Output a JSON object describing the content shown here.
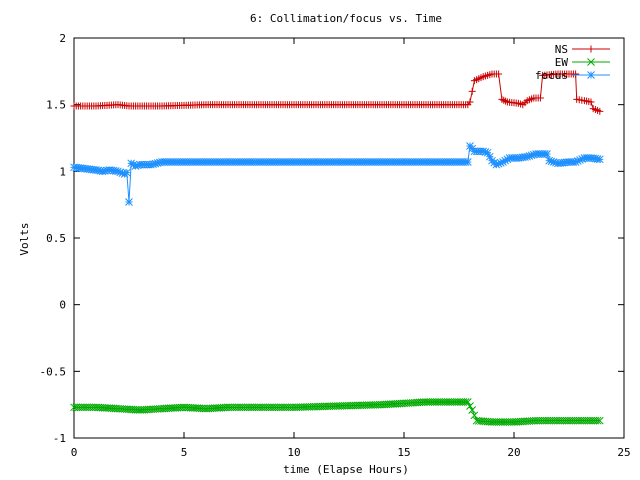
{
  "chart_data": {
    "type": "line",
    "title": "6: Collimation/focus vs. Time",
    "xlabel": "time (Elapse Hours)",
    "ylabel": "Volts",
    "xlim": [
      0,
      25
    ],
    "ylim": [
      -1,
      2
    ],
    "xticks": [
      0,
      5,
      10,
      15,
      20,
      25
    ],
    "xtick_labels": [
      "0",
      "5",
      "10",
      "15",
      "20",
      "25"
    ],
    "yticks": [
      -1,
      -0.5,
      0,
      0.5,
      1,
      1.5,
      2
    ],
    "ytick_labels": [
      "-1",
      "-0.5",
      "0",
      "0.5",
      "1",
      "1.5",
      "2"
    ],
    "grid": false,
    "legend_position": "top-right",
    "series": [
      {
        "name": "NS",
        "color": "#cc0000",
        "marker": "plus",
        "points": [
          [
            0,
            1.49
          ],
          [
            1,
            1.49
          ],
          [
            2,
            1.5
          ],
          [
            2.5,
            1.49
          ],
          [
            3,
            1.49
          ],
          [
            4,
            1.49
          ],
          [
            6,
            1.5
          ],
          [
            8,
            1.5
          ],
          [
            10,
            1.5
          ],
          [
            12,
            1.5
          ],
          [
            14,
            1.5
          ],
          [
            16,
            1.5
          ],
          [
            17.9,
            1.5
          ],
          [
            18.0,
            1.52
          ],
          [
            18.2,
            1.68
          ],
          [
            18.6,
            1.71
          ],
          [
            19,
            1.73
          ],
          [
            19.3,
            1.73
          ],
          [
            19.45,
            1.54
          ],
          [
            19.7,
            1.52
          ],
          [
            20.2,
            1.51
          ],
          [
            20.4,
            1.5
          ],
          [
            20.6,
            1.53
          ],
          [
            20.9,
            1.55
          ],
          [
            21.2,
            1.55
          ],
          [
            21.3,
            1.72
          ],
          [
            22,
            1.73
          ],
          [
            22.8,
            1.73
          ],
          [
            22.85,
            1.54
          ],
          [
            23.2,
            1.53
          ],
          [
            23.5,
            1.52
          ],
          [
            23.6,
            1.47
          ],
          [
            23.9,
            1.45
          ]
        ]
      },
      {
        "name": "EW",
        "color": "#00aa00",
        "marker": "cross",
        "points": [
          [
            0,
            -0.77
          ],
          [
            1,
            -0.77
          ],
          [
            2,
            -0.78
          ],
          [
            3,
            -0.79
          ],
          [
            4,
            -0.78
          ],
          [
            5,
            -0.77
          ],
          [
            6,
            -0.78
          ],
          [
            7,
            -0.77
          ],
          [
            8,
            -0.77
          ],
          [
            10,
            -0.77
          ],
          [
            12,
            -0.76
          ],
          [
            14,
            -0.75
          ],
          [
            15,
            -0.74
          ],
          [
            16,
            -0.73
          ],
          [
            17,
            -0.73
          ],
          [
            17.9,
            -0.73
          ],
          [
            18.1,
            -0.79
          ],
          [
            18.3,
            -0.87
          ],
          [
            19,
            -0.88
          ],
          [
            20,
            -0.88
          ],
          [
            21,
            -0.87
          ],
          [
            22,
            -0.87
          ],
          [
            23,
            -0.87
          ],
          [
            23.9,
            -0.87
          ]
        ]
      },
      {
        "name": "focus",
        "color": "#1e90ff",
        "marker": "star",
        "points": [
          [
            0,
            1.03
          ],
          [
            0.5,
            1.02
          ],
          [
            1,
            1.01
          ],
          [
            1.3,
            1.0
          ],
          [
            1.6,
            1.01
          ],
          [
            2,
            1.0
          ],
          [
            2.3,
            0.98
          ],
          [
            2.4,
            0.99
          ],
          [
            2.5,
            0.77
          ],
          [
            2.6,
            1.06
          ],
          [
            2.8,
            1.04
          ],
          [
            3,
            1.05
          ],
          [
            3.5,
            1.05
          ],
          [
            4,
            1.07
          ],
          [
            6,
            1.07
          ],
          [
            8,
            1.07
          ],
          [
            10,
            1.07
          ],
          [
            12,
            1.07
          ],
          [
            14,
            1.07
          ],
          [
            16,
            1.07
          ],
          [
            17.9,
            1.07
          ],
          [
            18.0,
            1.19
          ],
          [
            18.2,
            1.15
          ],
          [
            18.6,
            1.15
          ],
          [
            18.8,
            1.14
          ],
          [
            19,
            1.08
          ],
          [
            19.2,
            1.05
          ],
          [
            19.5,
            1.07
          ],
          [
            19.8,
            1.1
          ],
          [
            20.2,
            1.1
          ],
          [
            20.6,
            1.11
          ],
          [
            21,
            1.13
          ],
          [
            21.5,
            1.13
          ],
          [
            21.6,
            1.08
          ],
          [
            22,
            1.06
          ],
          [
            22.5,
            1.07
          ],
          [
            22.8,
            1.07
          ],
          [
            23.2,
            1.1
          ],
          [
            23.5,
            1.1
          ],
          [
            23.9,
            1.09
          ]
        ]
      }
    ]
  }
}
